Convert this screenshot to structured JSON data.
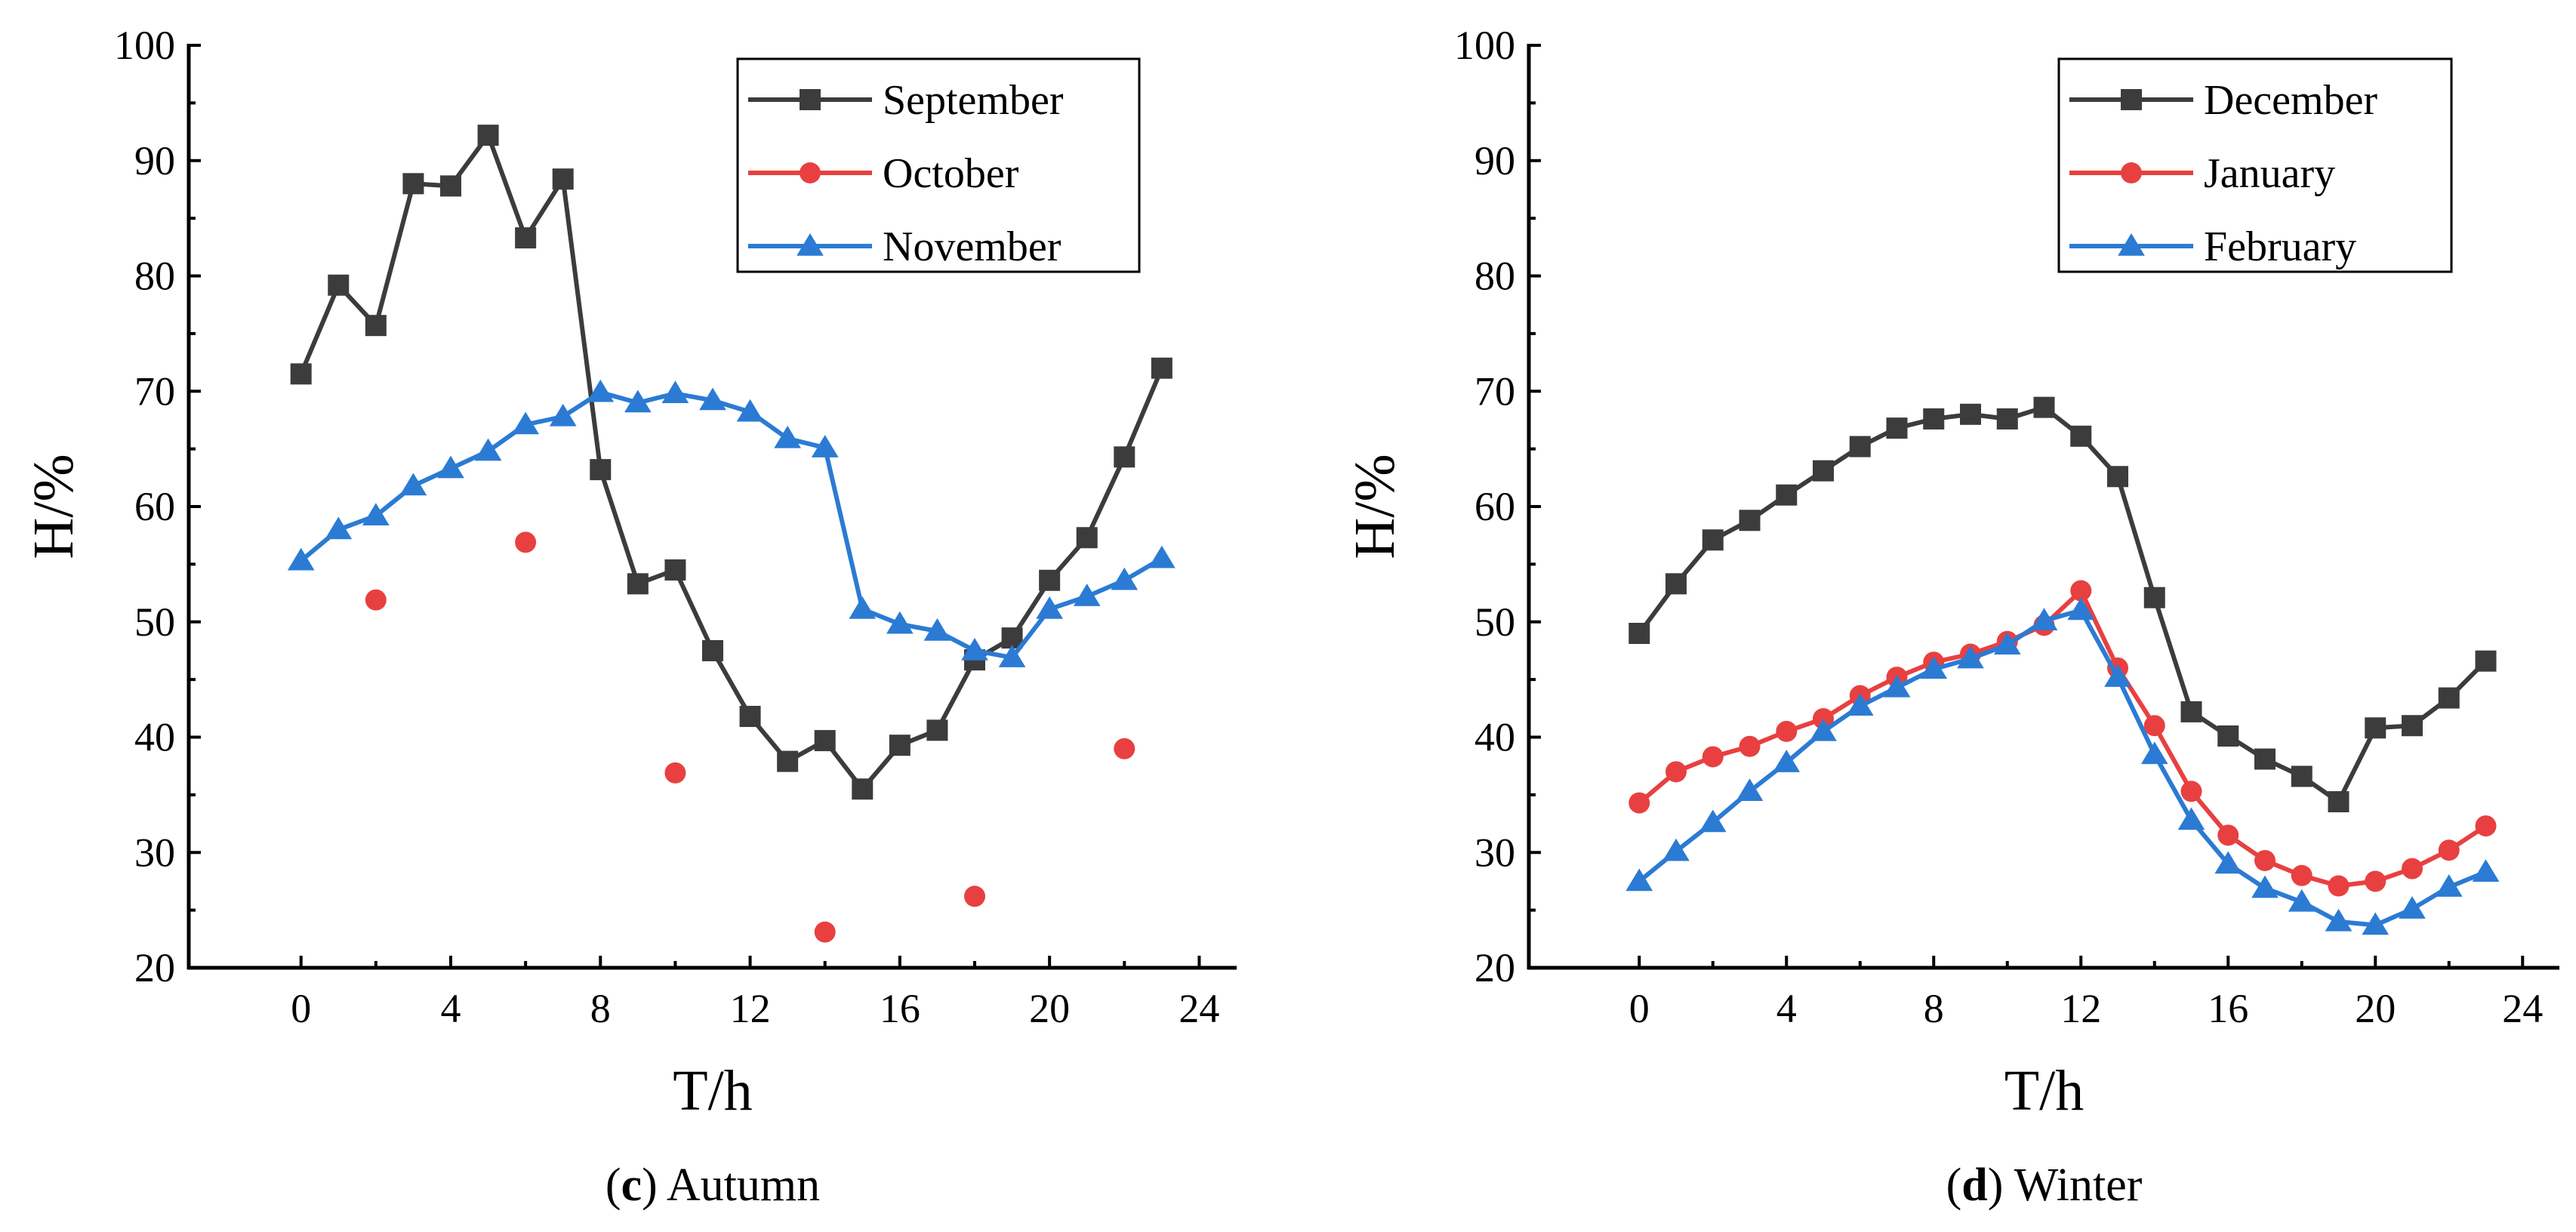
{
  "chart_data": [
    {
      "type": "line",
      "caption_letter": "c",
      "caption_text": " Autumn",
      "xlabel": "T/h",
      "ylabel": "H/%",
      "xlim": [
        -3,
        25
      ],
      "ylim": [
        20,
        100
      ],
      "xticks": [
        "0",
        "4",
        "8",
        "12",
        "16",
        "20",
        "24"
      ],
      "yticks": [
        "20",
        "30",
        "40",
        "50",
        "60",
        "70",
        "80",
        "90",
        "100"
      ],
      "legend_position": "top-right",
      "series": [
        {
          "name": "September",
          "color": "#3c3c3c",
          "marker": "square",
          "line": true,
          "x": [
            0,
            1,
            2,
            3,
            4,
            5,
            6,
            7,
            8,
            9,
            10,
            11,
            12,
            13,
            14,
            15,
            16,
            17,
            18,
            19,
            20,
            21,
            22,
            23
          ],
          "values": [
            71.5,
            79.2,
            75.7,
            88.0,
            87.8,
            92.2,
            83.3,
            88.4,
            63.2,
            53.3,
            54.5,
            47.5,
            41.8,
            37.9,
            39.7,
            35.5,
            39.3,
            40.6,
            46.7,
            48.6,
            53.6,
            57.3,
            64.3,
            72.0
          ]
        },
        {
          "name": "October",
          "color": "#e84040",
          "marker": "circle",
          "line": false,
          "x": [
            2,
            6,
            10,
            14,
            18,
            22
          ],
          "values": [
            51.9,
            56.9,
            36.9,
            23.1,
            26.2,
            39.0
          ]
        },
        {
          "name": "November",
          "color": "#2b7bd4",
          "marker": "triangle",
          "line": true,
          "x": [
            0,
            1,
            2,
            3,
            4,
            5,
            6,
            7,
            8,
            9,
            10,
            11,
            12,
            13,
            14,
            15,
            16,
            17,
            18,
            19,
            20,
            21,
            22,
            23
          ],
          "values": [
            55.3,
            58.0,
            59.2,
            61.8,
            63.3,
            64.8,
            67.1,
            67.8,
            69.9,
            69.0,
            69.8,
            69.2,
            68.2,
            65.9,
            65.1,
            51.1,
            49.8,
            49.2,
            47.5,
            46.9,
            51.1,
            52.2,
            53.6,
            55.5
          ]
        }
      ]
    },
    {
      "type": "line",
      "caption_letter": "d",
      "caption_text": " Winter",
      "xlabel": "T/h",
      "ylabel": "H/%",
      "xlim": [
        -3,
        25
      ],
      "ylim": [
        20,
        100
      ],
      "xticks": [
        "0",
        "4",
        "8",
        "12",
        "16",
        "20",
        "24"
      ],
      "yticks": [
        "20",
        "30",
        "40",
        "50",
        "60",
        "70",
        "80",
        "90",
        "100"
      ],
      "legend_position": "top-right",
      "series": [
        {
          "name": "December",
          "color": "#3c3c3c",
          "marker": "square",
          "line": true,
          "x": [
            0,
            1,
            2,
            3,
            4,
            5,
            6,
            7,
            8,
            9,
            10,
            11,
            12,
            13,
            14,
            15,
            16,
            17,
            18,
            19,
            20,
            21,
            22,
            23
          ],
          "values": [
            49.0,
            53.3,
            57.1,
            58.8,
            61.0,
            63.1,
            65.2,
            66.8,
            67.6,
            68.0,
            67.6,
            68.6,
            66.1,
            62.6,
            52.1,
            42.2,
            40.1,
            38.1,
            36.6,
            34.4,
            40.8,
            41.0,
            43.4,
            46.6
          ]
        },
        {
          "name": "January",
          "color": "#e84040",
          "marker": "circle",
          "line": true,
          "x": [
            0,
            1,
            2,
            3,
            4,
            5,
            6,
            7,
            8,
            9,
            10,
            11,
            12,
            13,
            14,
            15,
            16,
            17,
            18,
            19,
            20,
            21,
            22,
            23
          ],
          "values": [
            34.3,
            37.0,
            38.3,
            39.2,
            40.5,
            41.6,
            43.6,
            45.2,
            46.5,
            47.2,
            48.3,
            49.7,
            52.7,
            46.0,
            41.0,
            35.3,
            31.5,
            29.3,
            28.0,
            27.1,
            27.5,
            28.6,
            30.2,
            32.3
          ]
        },
        {
          "name": "February",
          "color": "#2b7bd4",
          "marker": "triangle",
          "line": true,
          "x": [
            0,
            1,
            2,
            3,
            4,
            5,
            6,
            7,
            8,
            9,
            10,
            11,
            12,
            13,
            14,
            15,
            16,
            17,
            18,
            19,
            20,
            21,
            22,
            23
          ],
          "values": [
            27.5,
            30.1,
            32.6,
            35.3,
            37.8,
            40.5,
            42.7,
            44.3,
            45.9,
            46.8,
            48.0,
            50.1,
            51.0,
            45.2,
            38.5,
            32.8,
            29.0,
            26.9,
            25.7,
            24.0,
            23.7,
            25.1,
            27.0,
            28.3
          ]
        }
      ]
    }
  ]
}
